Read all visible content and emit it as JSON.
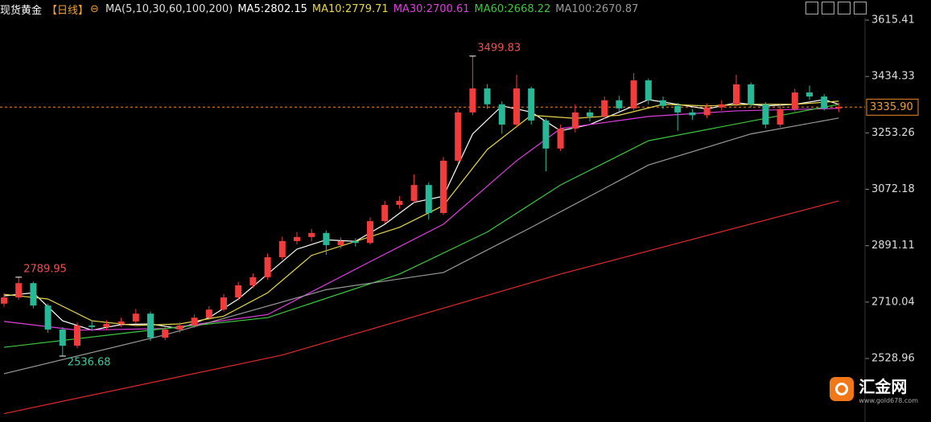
{
  "chart_data": {
    "type": "candlestick",
    "header": {
      "symbol": "现货黄金",
      "period": "【日线】",
      "ma_label": "MA(5,10,30,60,100,200)"
    },
    "up_color": "#f23c3c",
    "down_color": "#27b898",
    "ylim": [
      2325.09,
      3679.93
    ],
    "yticks": [
      3615.41,
      3434.33,
      3253.26,
      3072.18,
      2891.11,
      2710.04,
      2528.96
    ],
    "last_price": {
      "value": 3335.9,
      "label": "3335.90"
    },
    "open": [
      2705,
      2725,
      2771,
      2699,
      2622,
      2570,
      2635,
      2630,
      2640,
      2648,
      2673,
      2596,
      2622,
      2635,
      2660,
      2686,
      2725,
      2764,
      2790,
      2854,
      2906,
      2919,
      2932,
      2893,
      2906,
      2900,
      2970,
      3022,
      3035,
      3086,
      2996,
      3164,
      3319,
      3396,
      3345,
      3280,
      3396,
      3293,
      3203,
      3267,
      3319,
      3306,
      3358,
      3332,
      3422,
      3358,
      3340,
      3319,
      3310,
      3335,
      3345,
      3409,
      3345,
      3280,
      3330,
      3383,
      3370,
      3332
    ],
    "high": [
      2738,
      2789.95,
      2776,
      2705,
      2630,
      2645,
      2648,
      2652,
      2660,
      2688,
      2680,
      2632,
      2645,
      2670,
      2697,
      2736,
      2775,
      2802,
      2866,
      2920,
      2935,
      2945,
      2940,
      2918,
      2915,
      2982,
      3035,
      3050,
      3120,
      3095,
      3176,
      3330,
      3499.83,
      3410,
      3355,
      3440,
      3402,
      3300,
      3280,
      3345,
      3330,
      3370,
      3372,
      3445,
      3428,
      3370,
      3350,
      3330,
      3348,
      3358,
      3440,
      3415,
      3352,
      3345,
      3395,
      3405,
      3378,
      3350
    ],
    "low": [
      2695,
      2718,
      2690,
      2612,
      2536.68,
      2562,
      2618,
      2620,
      2630,
      2640,
      2585,
      2588,
      2612,
      2628,
      2652,
      2680,
      2716,
      2755,
      2782,
      2846,
      2895,
      2905,
      2862,
      2882,
      2888,
      2895,
      2962,
      3010,
      3028,
      2975,
      2990,
      3155,
      3310,
      3330,
      3250,
      3270,
      3280,
      3130,
      3195,
      3255,
      3290,
      3298,
      3320,
      3325,
      3345,
      3330,
      3260,
      3295,
      3300,
      3325,
      3338,
      3335,
      3268,
      3272,
      3322,
      3360,
      3325,
      3320
    ],
    "close": [
      2725,
      2771,
      2699,
      2622,
      2570,
      2635,
      2630,
      2640,
      2648,
      2673,
      2596,
      2622,
      2635,
      2660,
      2686,
      2725,
      2764,
      2790,
      2854,
      2906,
      2919,
      2932,
      2893,
      2906,
      2900,
      2970,
      3022,
      3035,
      3086,
      2996,
      3164,
      3319,
      3396,
      3345,
      3280,
      3396,
      3293,
      3203,
      3267,
      3319,
      3306,
      3358,
      3332,
      3422,
      3358,
      3340,
      3319,
      3310,
      3335,
      3345,
      3409,
      3345,
      3280,
      3330,
      3383,
      3370,
      3332,
      3335.9
    ],
    "series": [
      {
        "name": "MA5:2802.15",
        "color": "#ffffff",
        "x": [
          0,
          2,
          4,
          6,
          8,
          10,
          12,
          14,
          16,
          18,
          20,
          22,
          24,
          26,
          28,
          30,
          32,
          34,
          36,
          38,
          40,
          42,
          44,
          46,
          48,
          50,
          52,
          54,
          56,
          57
        ],
        "values": [
          2730,
          2740,
          2650,
          2620,
          2638,
          2640,
          2625,
          2660,
          2720,
          2800,
          2880,
          2910,
          2905,
          2960,
          3030,
          3050,
          3250,
          3340,
          3320,
          3260,
          3280,
          3320,
          3360,
          3345,
          3330,
          3350,
          3340,
          3345,
          3360,
          3345
        ]
      },
      {
        "name": "MA10:2779.71",
        "color": "#e8d64a",
        "x": [
          0,
          3,
          6,
          9,
          12,
          15,
          18,
          21,
          24,
          27,
          30,
          33,
          36,
          39,
          42,
          45,
          48,
          51,
          54,
          57
        ],
        "values": [
          2735,
          2720,
          2650,
          2635,
          2640,
          2665,
          2740,
          2860,
          2905,
          2950,
          3020,
          3200,
          3310,
          3300,
          3310,
          3345,
          3340,
          3345,
          3345,
          3355
        ]
      },
      {
        "name": "MA30:2700.61",
        "color": "#e03ee0",
        "x": [
          0,
          5,
          11,
          18,
          25,
          30,
          35,
          38,
          44,
          50,
          57
        ],
        "values": [
          2648,
          2620,
          2625,
          2670,
          2840,
          2960,
          3164,
          3267,
          3306,
          3324,
          3332
        ]
      },
      {
        "name": "MA60:2668.22",
        "color": "#3cc83c",
        "x": [
          0,
          10,
          18,
          27,
          33,
          38,
          44,
          57
        ],
        "values": [
          2565,
          2620,
          2660,
          2800,
          2935,
          3086,
          3228,
          3345
        ]
      },
      {
        "name": "MA100:2670.87",
        "color": "#9a9a9a",
        "x": [
          0,
          11,
          22,
          30,
          36,
          44,
          51,
          57
        ],
        "values": [
          2480,
          2605,
          2750,
          2805,
          2950,
          3150,
          3250,
          3301
        ]
      },
      {
        "color": "#e02a2a",
        "x": [
          0,
          19,
          38,
          57
        ],
        "values": [
          2352,
          2540,
          2800,
          3035
        ]
      }
    ],
    "watermark": {
      "name": "汇金网",
      "url": "www.gold678.com"
    }
  }
}
